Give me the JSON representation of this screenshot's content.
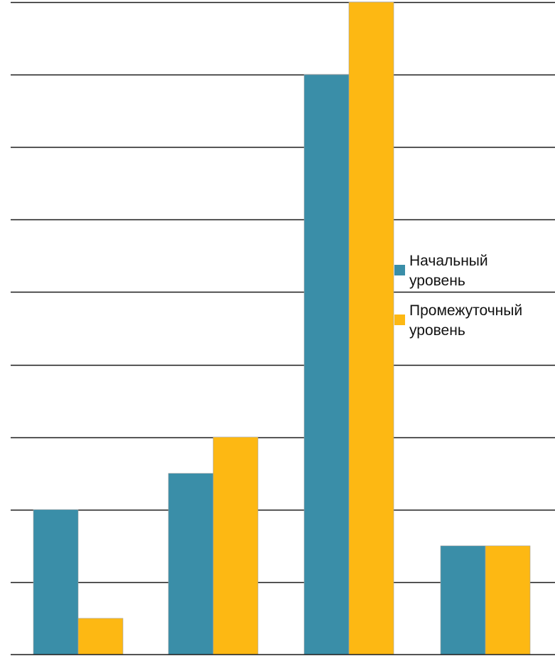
{
  "chart_data": {
    "type": "bar",
    "title": "",
    "xlabel": "",
    "ylabel": "",
    "categories": [
      "",
      "",
      "",
      ""
    ],
    "ylim": [
      0,
      9
    ],
    "grid": true,
    "legend_position": "right",
    "series": [
      {
        "name_lines": [
          "Начальный",
          "уровень"
        ],
        "color": "#3a8ea8",
        "values": [
          2.0,
          2.5,
          8.0,
          1.5
        ]
      },
      {
        "name_lines": [
          "Промежуточный",
          "уровень"
        ],
        "color": "#fdb813",
        "values": [
          0.5,
          3.0,
          9.0,
          1.5
        ]
      }
    ]
  }
}
